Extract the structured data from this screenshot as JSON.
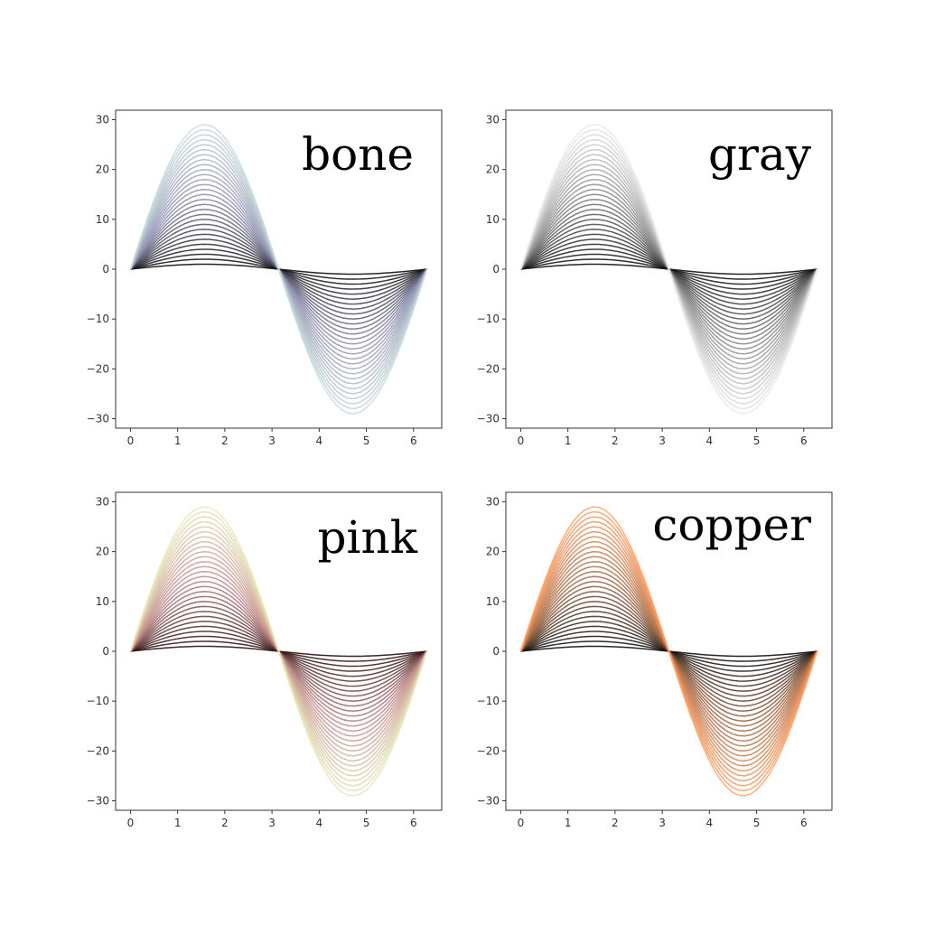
{
  "chart_data": [
    {
      "type": "line",
      "colormap": "bone",
      "title": "bone",
      "x_function": "linspace(0, 2*pi)",
      "y_function": "amplitude * sin(x)",
      "amplitudes": [
        1,
        2,
        3,
        4,
        5,
        6,
        7,
        8,
        9,
        10,
        11,
        12,
        13,
        14,
        15,
        16,
        17,
        18,
        19,
        20,
        21,
        22,
        23,
        24,
        25,
        26,
        27,
        28,
        29
      ],
      "colors": [
        "#000000",
        "#8a8aae",
        "#c6dada"
      ],
      "xlim": [
        -0.314,
        6.597
      ],
      "ylim": [
        -31.9,
        31.9
      ],
      "xticks": [
        0,
        1,
        2,
        3,
        4,
        5,
        6
      ],
      "yticks": [
        -30,
        -20,
        -10,
        0,
        10,
        20,
        30
      ],
      "grid": false
    },
    {
      "type": "line",
      "colormap": "gray",
      "title": "gray",
      "x_function": "linspace(0, 2*pi)",
      "y_function": "amplitude * sin(x)",
      "amplitudes": [
        1,
        2,
        3,
        4,
        5,
        6,
        7,
        8,
        9,
        10,
        11,
        12,
        13,
        14,
        15,
        16,
        17,
        18,
        19,
        20,
        21,
        22,
        23,
        24,
        25,
        26,
        27,
        28,
        29
      ],
      "colors": [
        "#000000",
        "#808080",
        "#e8e8e8"
      ],
      "xlim": [
        -0.314,
        6.597
      ],
      "ylim": [
        -31.9,
        31.9
      ],
      "xticks": [
        0,
        1,
        2,
        3,
        4,
        5,
        6
      ],
      "yticks": [
        -30,
        -20,
        -10,
        0,
        10,
        20,
        30
      ],
      "grid": false
    },
    {
      "type": "line",
      "colormap": "pink",
      "title": "pink",
      "x_function": "linspace(0, 2*pi)",
      "y_function": "amplitude * sin(x)",
      "amplitudes": [
        1,
        2,
        3,
        4,
        5,
        6,
        7,
        8,
        9,
        10,
        11,
        12,
        13,
        14,
        15,
        16,
        17,
        18,
        19,
        20,
        21,
        22,
        23,
        24,
        25,
        26,
        27,
        28,
        29
      ],
      "colors": [
        "#1e0000",
        "#c08585",
        "#e6e6b8"
      ],
      "xlim": [
        -0.314,
        6.597
      ],
      "ylim": [
        -31.9,
        31.9
      ],
      "xticks": [
        0,
        1,
        2,
        3,
        4,
        5,
        6
      ],
      "yticks": [
        -30,
        -20,
        -10,
        0,
        10,
        20,
        30
      ],
      "grid": false
    },
    {
      "type": "line",
      "colormap": "copper",
      "title": "copper",
      "x_function": "linspace(0, 2*pi)",
      "y_function": "amplitude * sin(x)",
      "amplitudes": [
        1,
        2,
        3,
        4,
        5,
        6,
        7,
        8,
        9,
        10,
        11,
        12,
        13,
        14,
        15,
        16,
        17,
        18,
        19,
        20,
        21,
        22,
        23,
        24,
        25,
        26,
        27,
        28,
        29
      ],
      "colors": [
        "#000000",
        "#9e6440",
        "#ffa066"
      ],
      "xlim": [
        -0.314,
        6.597
      ],
      "ylim": [
        -31.9,
        31.9
      ],
      "xticks": [
        0,
        1,
        2,
        3,
        4,
        5,
        6
      ],
      "yticks": [
        -30,
        -20,
        -10,
        0,
        10,
        20,
        30
      ],
      "grid": false
    }
  ]
}
